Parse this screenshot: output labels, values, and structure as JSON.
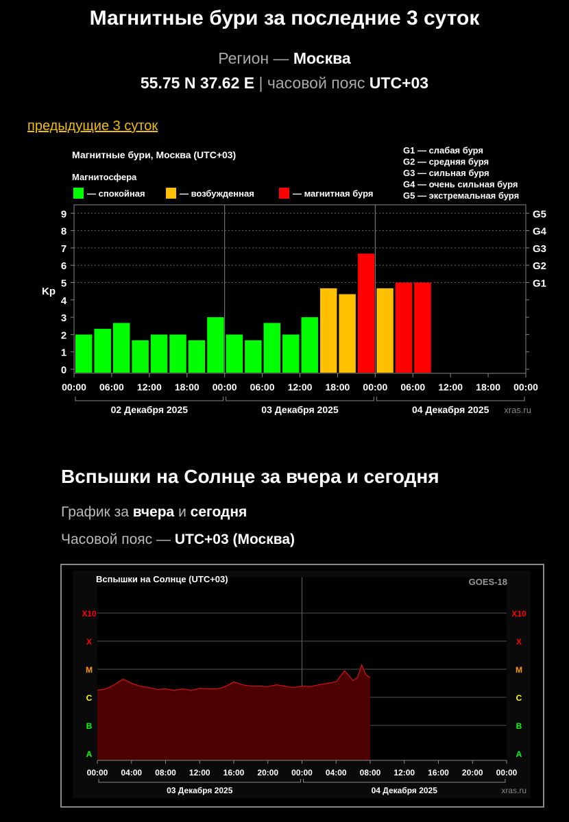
{
  "header": {
    "title": "Магнитные бури за последние 3 суток",
    "region_label": "Регион —",
    "region_value": "Москва",
    "coords": "55.75 N 37.62 E",
    "separator": "|",
    "tz_label": "часовой пояс",
    "tz_value": "UTC+03"
  },
  "prev_link": "предыдущие 3 суток",
  "flares_section": {
    "title": "Вспышки на Солнце за вчера и сегодня",
    "sub1_prefix": "График за",
    "sub1_word1": "вчера",
    "sub1_and": "и",
    "sub1_word2": "сегодня",
    "sub2_prefix": "Часовой пояс —",
    "sub2_value": "UTC+03 (Москва)"
  },
  "chart_data": [
    {
      "type": "bar",
      "title": "Магнитные бури, Москва (UTC+03)",
      "legend_title": "Магнитосфера",
      "legend": [
        {
          "label": "— спокойная",
          "color": "#00ff00"
        },
        {
          "label": "— возбужденная",
          "color": "#ffc000"
        },
        {
          "label": "— магнитная буря",
          "color": "#ff0000"
        }
      ],
      "storm_legend": [
        "G1 — слабая буря",
        "G2 — средняя буря",
        "G3 — сильная буря",
        "G4 — очень сильная буря",
        "G5 — экстремальная буря"
      ],
      "ylabel": "Kp",
      "ylim": [
        0,
        9
      ],
      "y_ticks": [
        "0",
        "1",
        "2",
        "3",
        "4",
        "5",
        "6",
        "7",
        "8",
        "9"
      ],
      "g_levels": [
        {
          "label": "G1",
          "value": 5
        },
        {
          "label": "G2",
          "value": 6
        },
        {
          "label": "G3",
          "value": 7
        },
        {
          "label": "G4",
          "value": 8
        },
        {
          "label": "G5",
          "value": 9
        }
      ],
      "x_ticks": [
        "00:00",
        "06:00",
        "12:00",
        "18:00",
        "00:00",
        "06:00",
        "12:00",
        "18:00",
        "00:00",
        "06:00",
        "12:00",
        "18:00",
        "00:00"
      ],
      "days": [
        "02 Декабря 2025",
        "03 Декабря 2025",
        "04 Декабря 2025"
      ],
      "total_slots": 24,
      "values": [
        2.0,
        2.33,
        2.67,
        1.67,
        2.0,
        2.0,
        1.67,
        3.0,
        2.0,
        1.67,
        2.67,
        2.0,
        3.0,
        4.67,
        4.33,
        6.67,
        4.67,
        5.0,
        5.0
      ],
      "level_colors": {
        "quiet": "#00ff00",
        "active": "#ffc000",
        "storm": "#ff0000"
      },
      "watermark": "xras.ru"
    },
    {
      "type": "area",
      "title": "Вспышки на Солнце (UTC+03)",
      "source": "GOES-18",
      "y_levels": [
        {
          "label": "A",
          "color": "#00ff00"
        },
        {
          "label": "B",
          "color": "#00ff00"
        },
        {
          "label": "C",
          "color": "#ffff00"
        },
        {
          "label": "M",
          "color": "#ff9900"
        },
        {
          "label": "X",
          "color": "#ff0000"
        },
        {
          "label": "X10",
          "color": "#ff0000"
        }
      ],
      "x_ticks": [
        "00:00",
        "04:00",
        "08:00",
        "12:00",
        "16:00",
        "20:00",
        "00:00",
        "04:00",
        "08:00",
        "12:00",
        "16:00",
        "20:00",
        "00:00"
      ],
      "days": [
        "03 Декабря 2025",
        "04 Декабря 2025"
      ],
      "x_range_hours": [
        0,
        48
      ],
      "x_hours": [
        0,
        1,
        2,
        3,
        4,
        5,
        6,
        7,
        8,
        9,
        10,
        11,
        12,
        13,
        14,
        15,
        16,
        17,
        18,
        19,
        20,
        21,
        22,
        23,
        24,
        25,
        26,
        27,
        28,
        29,
        30,
        30.5,
        31,
        31.5,
        32
      ],
      "flux_level": [
        2.25,
        2.3,
        2.45,
        2.65,
        2.5,
        2.4,
        2.35,
        2.28,
        2.3,
        2.25,
        2.3,
        2.25,
        2.32,
        2.3,
        2.3,
        2.38,
        2.55,
        2.45,
        2.4,
        2.4,
        2.38,
        2.45,
        2.4,
        2.35,
        2.4,
        2.38,
        2.45,
        2.5,
        2.55,
        2.95,
        2.6,
        2.7,
        3.15,
        2.8,
        2.7
      ],
      "watermark": "xras.ru"
    }
  ]
}
